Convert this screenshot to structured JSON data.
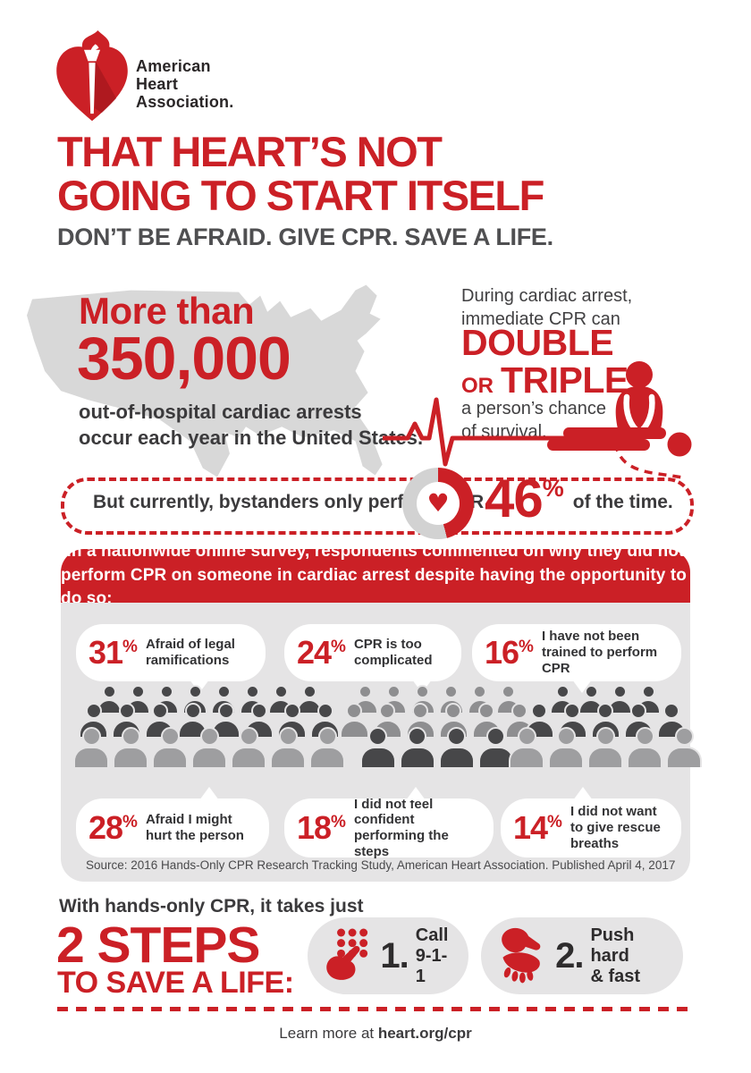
{
  "colors": {
    "brand_red": "#cb2026",
    "dark_text": "#3b3a3c",
    "map_gray": "#d8d8d8",
    "panel_gray": "#e5e4e5",
    "donut_gray": "#d2d2d2",
    "crowd_dark": "#474749",
    "crowd_mid": "#8e8e90",
    "crowd_light": "#9e9ea0"
  },
  "misc": {
    "percent": "%"
  },
  "brand": {
    "name_line1": "American",
    "name_line2": "Heart",
    "name_line3": "Association."
  },
  "headline": {
    "line1": "THAT HEART’S NOT",
    "line2": "GOING TO START ITSELF",
    "sub": "DON’T BE AFRAID. GIVE CPR. SAVE A LIFE."
  },
  "stat_map": {
    "lead": "More than",
    "number": "350,000",
    "desc_line1": "out-of-hospital cardiac arrests",
    "desc_line2": "occur each year in the United States."
  },
  "double_triple": {
    "intro_line1": "During cardiac arrest,",
    "intro_line2": "immediate CPR can",
    "big1": "DOUBLE",
    "or": "OR",
    "big2": "TRIPLE",
    "outro_line1": "a person’s chance",
    "outro_line2": "of survival."
  },
  "bystander": {
    "text": "But currently, bystanders only perform CPR",
    "pct": "46",
    "suffix": "of the time.",
    "donut_pct": 46
  },
  "survey": {
    "header_line1": "In a nationwide online survey, respondents commented on why they did not",
    "header_line2": "perform CPR on someone in cardiac arrest despite having the opportunity to do so:",
    "top_stats": [
      {
        "pct": "31",
        "label": "Afraid of legal ramifications"
      },
      {
        "pct": "24",
        "label": "CPR is too complicated"
      },
      {
        "pct": "16",
        "label": "I have not been trained to perform CPR"
      }
    ],
    "bottom_stats": [
      {
        "pct": "28",
        "label": "Afraid I might hurt the person"
      },
      {
        "pct": "18",
        "label": "I did not feel confident performing the steps"
      },
      {
        "pct": "14",
        "label": "I did not want to give rescue breaths"
      }
    ],
    "crowd": {
      "groups": [
        {
          "rows": [
            {
              "count": 8,
              "shade": "dark",
              "size": "s"
            },
            {
              "count": 8,
              "shade": "dark",
              "size": "m"
            },
            {
              "count": 7,
              "shade": "light",
              "size": "l"
            }
          ]
        },
        {
          "rows": [
            {
              "count": 6,
              "shade": "mid",
              "size": "s"
            },
            {
              "count": 6,
              "shade": "mid",
              "size": "m"
            },
            {
              "count": 4,
              "shade": "dark",
              "size": "l"
            }
          ]
        },
        {
          "rows": [
            {
              "count": 4,
              "shade": "dark",
              "size": "s"
            },
            {
              "count": 5,
              "shade": "dark",
              "size": "m"
            },
            {
              "count": 5,
              "shade": "light",
              "size": "l"
            }
          ]
        }
      ]
    },
    "source": "Source: 2016 Hands-Only CPR Research Tracking Study, American Heart Association. Published April 4, 2017"
  },
  "steps": {
    "intro": "With hands-only CPR, it takes just",
    "big1": "2 STEPS",
    "big2": "TO SAVE A LIFE:",
    "items": [
      {
        "num": "1.",
        "label_line1": "Call",
        "label_line2": "9-1-1"
      },
      {
        "num": "2.",
        "label_line1": "Push hard",
        "label_line2": "& fast"
      }
    ]
  },
  "footer": {
    "prefix": "Learn more at ",
    "link": "heart.org/cpr"
  }
}
